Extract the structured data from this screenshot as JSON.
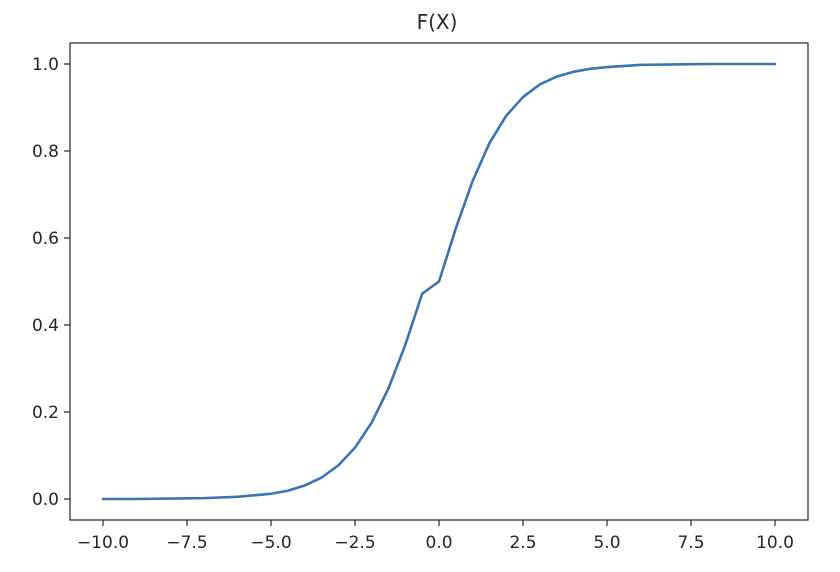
{
  "chart_data": {
    "type": "line",
    "title": "F(X)",
    "xlabel": "",
    "ylabel": "",
    "xlim": [
      -10.0,
      10.0
    ],
    "ylim": [
      0.0,
      1.0
    ],
    "grid": false,
    "x_ticks": [
      {
        "value": -10.0,
        "label": "−10.0"
      },
      {
        "value": -7.5,
        "label": "−7.5"
      },
      {
        "value": -5.0,
        "label": "−5.0"
      },
      {
        "value": -2.5,
        "label": "−2.5"
      },
      {
        "value": 0.0,
        "label": "0.0"
      },
      {
        "value": 2.5,
        "label": "2.5"
      },
      {
        "value": 5.0,
        "label": "5.0"
      },
      {
        "value": 7.5,
        "label": "7.5"
      },
      {
        "value": 10.0,
        "label": "10.0"
      }
    ],
    "y_ticks": [
      {
        "value": 0.0,
        "label": "0.0"
      },
      {
        "value": 0.2,
        "label": "0.2"
      },
      {
        "value": 0.4,
        "label": "0.4"
      },
      {
        "value": 0.6,
        "label": "0.6"
      },
      {
        "value": 0.8,
        "label": "0.8"
      },
      {
        "value": 1.0,
        "label": "1.0"
      }
    ],
    "series": [
      {
        "color": "#3a75b0",
        "x": [
          -10.0,
          -9.0,
          -8.0,
          -7.0,
          -6.0,
          -5.0,
          -4.5,
          -4.0,
          -3.5,
          -3.0,
          -2.5,
          -2.0,
          -1.5,
          -1.0,
          -0.5,
          0.0,
          0.5,
          1.0,
          1.5,
          2.0,
          2.5,
          3.0,
          3.5,
          4.0,
          4.5,
          5.0,
          6.0,
          7.0,
          8.0,
          9.0,
          10.0
        ],
        "y": [
          0.0,
          0.0,
          0.001,
          0.002,
          0.005,
          0.012,
          0.019,
          0.031,
          0.049,
          0.077,
          0.118,
          0.176,
          0.255,
          0.355,
          0.472,
          0.5,
          0.622,
          0.731,
          0.818,
          0.881,
          0.924,
          0.953,
          0.971,
          0.982,
          0.989,
          0.993,
          0.998,
          0.999,
          1.0,
          1.0,
          1.0
        ]
      }
    ]
  }
}
